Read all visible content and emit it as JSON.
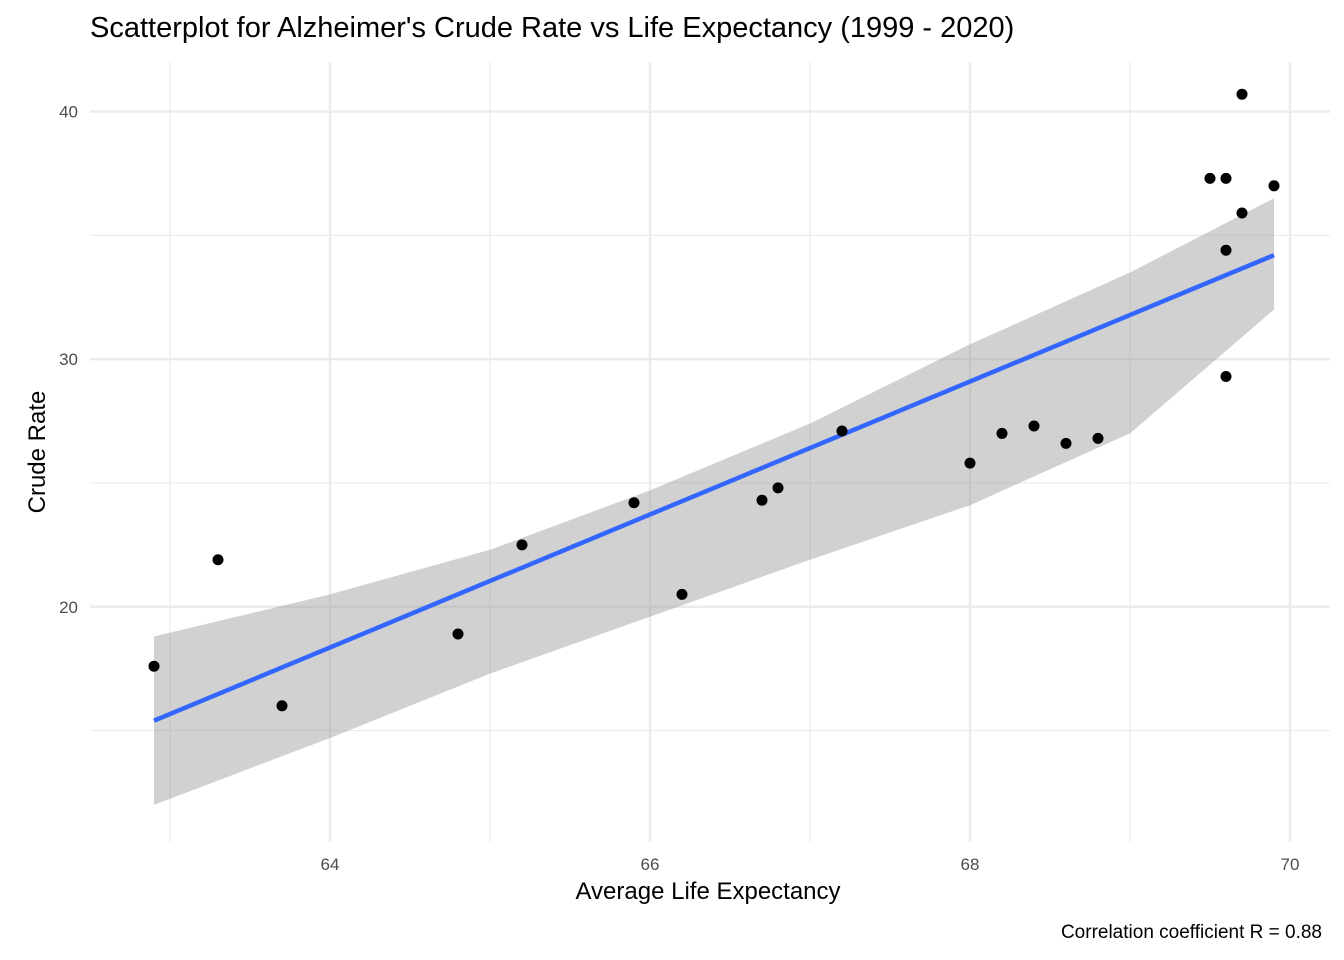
{
  "chart_data": {
    "type": "scatter",
    "title": "Scatterplot for Alzheimer's Crude Rate vs Life Expectancy (1999 - 2020)",
    "xlabel": "Average Life Expectancy",
    "ylabel": "Crude Rate",
    "caption": "Correlation coefficient R = 0.88",
    "xlim": [
      62.5,
      70.25
    ],
    "ylim": [
      10.5,
      42
    ],
    "x_ticks": [
      64,
      66,
      68,
      70
    ],
    "x_tick_labels": [
      "64",
      "66",
      "68",
      "70"
    ],
    "y_ticks": [
      20,
      30,
      40
    ],
    "y_tick_labels": [
      "20",
      "30",
      "40"
    ],
    "grid": true,
    "legend": "none",
    "colors": {
      "points": "#000000",
      "fit_line": "#3366ff",
      "ci_band": "#999999",
      "grid": "#ebebeb"
    },
    "points": [
      {
        "x": 62.9,
        "y": 17.6
      },
      {
        "x": 63.3,
        "y": 21.9
      },
      {
        "x": 63.7,
        "y": 16.0
      },
      {
        "x": 64.8,
        "y": 18.9
      },
      {
        "x": 65.2,
        "y": 22.5
      },
      {
        "x": 65.9,
        "y": 24.2
      },
      {
        "x": 66.2,
        "y": 20.5
      },
      {
        "x": 66.7,
        "y": 24.3
      },
      {
        "x": 66.8,
        "y": 24.8
      },
      {
        "x": 67.2,
        "y": 27.1
      },
      {
        "x": 68.0,
        "y": 25.8
      },
      {
        "x": 68.2,
        "y": 27.0
      },
      {
        "x": 68.4,
        "y": 27.3
      },
      {
        "x": 68.6,
        "y": 26.6
      },
      {
        "x": 68.8,
        "y": 26.8
      },
      {
        "x": 69.5,
        "y": 37.3
      },
      {
        "x": 69.6,
        "y": 37.3
      },
      {
        "x": 69.6,
        "y": 34.4
      },
      {
        "x": 69.6,
        "y": 29.3
      },
      {
        "x": 69.7,
        "y": 40.7
      },
      {
        "x": 69.7,
        "y": 35.9
      },
      {
        "x": 69.9,
        "y": 37.0
      }
    ],
    "fit_line": {
      "method": "linear",
      "x": [
        62.9,
        69.9
      ],
      "y": [
        15.4,
        34.2
      ]
    },
    "confidence_band": {
      "x": [
        62.9,
        64.0,
        65.0,
        66.0,
        67.0,
        68.0,
        69.0,
        69.9
      ],
      "upper": [
        18.8,
        20.5,
        22.3,
        24.7,
        27.4,
        30.6,
        33.5,
        36.5
      ],
      "lower": [
        12.0,
        14.7,
        17.3,
        19.6,
        21.9,
        24.1,
        27.0,
        32.0
      ]
    }
  }
}
